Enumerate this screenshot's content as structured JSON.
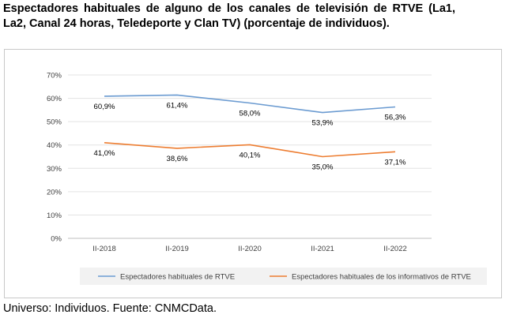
{
  "title": "Espectadores habituales de alguno de los canales de televisión de RTVE (La1, La2, Canal 24 horas, Teledeporte y Clan TV) (porcentaje de individuos).",
  "footer": "Universo: Individuos. Fuente: CNMCData.",
  "chart_data": {
    "type": "line",
    "title": "",
    "xlabel": "",
    "ylabel": "",
    "categories": [
      "II-2018",
      "II-2019",
      "II-2020",
      "II-2021",
      "II-2022"
    ],
    "ylim": [
      0,
      70
    ],
    "yticks": [
      0,
      10,
      20,
      30,
      40,
      50,
      60,
      70
    ],
    "ytick_labels": [
      "0%",
      "10%",
      "20%",
      "30%",
      "40%",
      "50%",
      "60%",
      "70%"
    ],
    "grid": true,
    "legend_position": "bottom",
    "series": [
      {
        "name": "Espectadores habituales de RTVE",
        "color": "#6b9bd1",
        "values": [
          60.9,
          61.4,
          58.0,
          53.9,
          56.3
        ],
        "labels": [
          "60,9%",
          "61,4%",
          "58,0%",
          "53,9%",
          "56,3%"
        ]
      },
      {
        "name": "Espectadores habituales de los informativos de RTVE",
        "color": "#ed7d31",
        "values": [
          41.0,
          38.6,
          40.1,
          35.0,
          37.1
        ],
        "labels": [
          "41,0%",
          "38,6%",
          "40,1%",
          "35,0%",
          "37,1%"
        ]
      }
    ]
  }
}
